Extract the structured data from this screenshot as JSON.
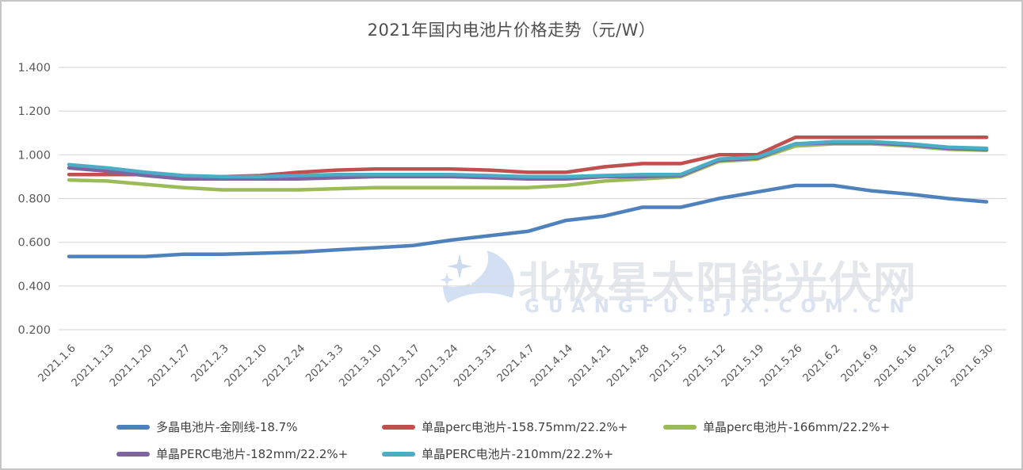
{
  "chart_data": {
    "type": "line",
    "title": "2021年国内电池片价格走势（元/W）",
    "xlabel": "",
    "ylabel": "",
    "unit": "元/W",
    "ylim": [
      0.2,
      1.4
    ],
    "y_tick_step": 0.2,
    "y_tick_labels": [
      "1.400",
      "1.200",
      "1.000",
      "0.800",
      "0.600",
      "0.400",
      "0.200"
    ],
    "grid": true,
    "legend_position": "bottom",
    "x": [
      "2021.1.6",
      "2021.1.13",
      "2021.1.20",
      "2021.1.27",
      "2021.2.3",
      "2021.2.10",
      "2021.2.24",
      "2021.3.3",
      "2021.3.10",
      "2021.3.17",
      "2021.3.24",
      "2021.3.31",
      "2021.4.7",
      "2021.4.14",
      "2021.4.21",
      "2021.4.28",
      "2021.5.5",
      "2021.5.12",
      "2021.5.19",
      "2021.5.26",
      "2021.6.2",
      "2021.6.9",
      "2021.6.16",
      "2021.6.23",
      "2021.6.30"
    ],
    "series": [
      {
        "name": "多晶电池片-金刚线-18.7%",
        "color": "#4F81BD",
        "values": [
          0.535,
          0.535,
          0.535,
          0.545,
          0.545,
          0.55,
          0.555,
          0.565,
          0.575,
          0.585,
          0.61,
          0.63,
          0.65,
          0.7,
          0.72,
          0.76,
          0.76,
          0.8,
          0.83,
          0.86,
          0.86,
          0.835,
          0.82,
          0.8,
          0.785
        ]
      },
      {
        "name": "单晶perc电池片-158.75mm/22.2%+",
        "color": "#C0504D",
        "values": [
          0.91,
          0.91,
          0.91,
          0.9,
          0.9,
          0.905,
          0.92,
          0.93,
          0.935,
          0.935,
          0.935,
          0.93,
          0.92,
          0.92,
          0.945,
          0.96,
          0.96,
          1.0,
          1.0,
          1.08,
          1.08,
          1.08,
          1.08,
          1.08,
          1.08
        ]
      },
      {
        "name": "单晶perc电池片-166mm/22.2%+",
        "color": "#9BBB59",
        "values": [
          0.885,
          0.88,
          0.865,
          0.85,
          0.84,
          0.84,
          0.84,
          0.845,
          0.85,
          0.85,
          0.85,
          0.85,
          0.85,
          0.86,
          0.88,
          0.89,
          0.9,
          0.97,
          0.98,
          1.04,
          1.05,
          1.05,
          1.04,
          1.025,
          1.02
        ]
      },
      {
        "name": "单晶PERC电池片-182mm/22.2%+",
        "color": "#8064A2",
        "values": [
          0.94,
          0.925,
          0.905,
          0.89,
          0.89,
          0.89,
          0.89,
          0.895,
          0.9,
          0.9,
          0.9,
          0.895,
          0.89,
          0.89,
          0.9,
          0.9,
          0.905,
          0.975,
          0.985,
          1.05,
          1.055,
          1.055,
          1.045,
          1.03,
          1.025
        ]
      },
      {
        "name": "单晶PERC电池片-210mm/22.2%+",
        "color": "#4BACC6",
        "values": [
          0.955,
          0.94,
          0.92,
          0.905,
          0.9,
          0.9,
          0.905,
          0.91,
          0.91,
          0.91,
          0.91,
          0.905,
          0.9,
          0.9,
          0.905,
          0.91,
          0.91,
          0.98,
          0.99,
          1.05,
          1.06,
          1.06,
          1.05,
          1.035,
          1.03
        ]
      }
    ]
  },
  "watermark": {
    "text": "北极星太阳能光伏网",
    "subtext": "GUANGFU.BJX.COM.CN"
  },
  "style": {
    "grid_color": "#d9d9d9",
    "axis_label_color": "#595959",
    "title_color": "#4f4f4f",
    "legend_text_color": "#3f3f3f",
    "watermark_color": "#d3dff2"
  }
}
